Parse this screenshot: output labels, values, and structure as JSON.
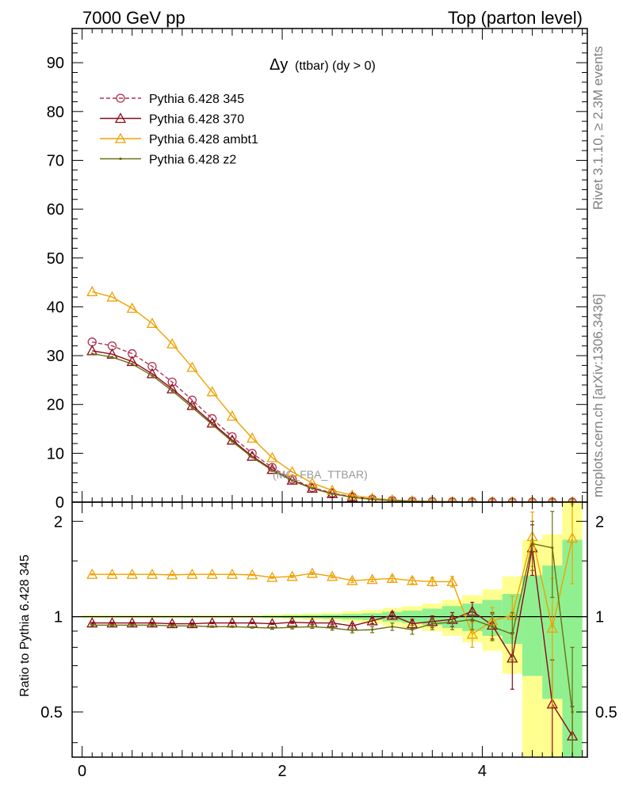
{
  "header": {
    "energy_label": "7000 GeV pp",
    "process_label": "Top (parton level)"
  },
  "side_labels": {
    "rivet": "Rivet 3.1.10, ≥ 2.3M events",
    "mcplots": "mcplots.cern.ch [arXiv:1306.3436]"
  },
  "chart_data": [
    {
      "type": "line",
      "title_main": "Δy",
      "title_sub": "(ttbar) (dy > 0)",
      "watermark": "(MC_FBA_TTBAR)",
      "ylim": [
        0,
        97
      ],
      "xlim": [
        -0.1,
        5.05
      ],
      "yticks": [
        "0",
        "10",
        "20",
        "30",
        "40",
        "50",
        "60",
        "70",
        "80",
        "90"
      ],
      "x": [
        0.1,
        0.3,
        0.5,
        0.7,
        0.9,
        1.1,
        1.3,
        1.5,
        1.7,
        1.9,
        2.1,
        2.3,
        2.5,
        2.7,
        2.9,
        3.1,
        3.3,
        3.5,
        3.7,
        3.9,
        4.1,
        4.3,
        4.5,
        4.7,
        4.9
      ],
      "legend_position": "top-left",
      "series": [
        {
          "name": "Pythia 6.428 345",
          "color": "#b03050",
          "marker": "circle",
          "dashed": true,
          "values": [
            32.8,
            32.0,
            30.4,
            27.8,
            24.6,
            20.9,
            17.1,
            13.4,
            10.0,
            7.1,
            4.7,
            3.0,
            1.85,
            1.1,
            0.6,
            0.35,
            0.2,
            0.12,
            0.07,
            0.04,
            0.03,
            0.02,
            0.01,
            0.01,
            0.01
          ]
        },
        {
          "name": "Pythia 6.428 370",
          "color": "#8b0a1a",
          "marker": "triangle",
          "values": [
            31.0,
            30.3,
            28.8,
            26.3,
            23.2,
            19.8,
            16.2,
            12.7,
            9.4,
            6.7,
            4.5,
            2.85,
            1.75,
            1.0,
            0.58,
            0.34,
            0.19,
            0.11,
            0.07,
            0.04,
            0.03,
            0.02,
            0.01,
            0.01,
            0.01
          ]
        },
        {
          "name": "Pythia 6.428 ambt1",
          "color": "#f0a000",
          "marker": "triangle",
          "values": [
            43.1,
            42.0,
            39.7,
            36.6,
            32.4,
            27.6,
            22.6,
            17.6,
            13.1,
            9.1,
            6.2,
            3.9,
            2.4,
            1.4,
            0.8,
            0.45,
            0.25,
            0.14,
            0.08,
            0.05,
            0.03,
            0.02,
            0.01,
            0.01,
            0.01
          ]
        },
        {
          "name": "Pythia 6.428 z2",
          "color": "#6b7010",
          "marker": "dot",
          "values": [
            30.4,
            29.7,
            28.3,
            25.9,
            22.8,
            19.4,
            15.9,
            12.4,
            9.2,
            6.5,
            4.4,
            2.8,
            1.7,
            1.0,
            0.55,
            0.32,
            0.18,
            0.1,
            0.06,
            0.04,
            0.03,
            0.02,
            0.01,
            0.01,
            0.01
          ]
        }
      ]
    },
    {
      "type": "line",
      "ylabel": "Ratio to Pythia 6.428 345",
      "ylim": [
        0.36,
        2.3
      ],
      "yscale": "log",
      "xlim": [
        -0.1,
        5.05
      ],
      "xticks": [
        "0",
        "2",
        "4"
      ],
      "yticks": [
        "0.5",
        "1",
        "2"
      ],
      "x": [
        0.1,
        0.3,
        0.5,
        0.7,
        0.9,
        1.1,
        1.3,
        1.5,
        1.7,
        1.9,
        2.1,
        2.3,
        2.5,
        2.7,
        2.9,
        3.1,
        3.3,
        3.5,
        3.7,
        3.9,
        4.1,
        4.3,
        4.5,
        4.7,
        4.9
      ],
      "bands": {
        "inner_color": "#90f090",
        "outer_color": "#ffff90",
        "inner": [
          [
            0.995,
            1.005
          ],
          [
            0.995,
            1.005
          ],
          [
            0.995,
            1.005
          ],
          [
            0.995,
            1.005
          ],
          [
            0.995,
            1.005
          ],
          [
            0.995,
            1.005
          ],
          [
            0.995,
            1.005
          ],
          [
            0.995,
            1.005
          ],
          [
            0.995,
            1.005
          ],
          [
            0.993,
            1.007
          ],
          [
            0.99,
            1.01
          ],
          [
            0.988,
            1.012
          ],
          [
            0.985,
            1.015
          ],
          [
            0.98,
            1.02
          ],
          [
            0.975,
            1.025
          ],
          [
            0.965,
            1.035
          ],
          [
            0.955,
            1.045
          ],
          [
            0.94,
            1.06
          ],
          [
            0.92,
            1.08
          ],
          [
            0.9,
            1.1
          ],
          [
            0.87,
            1.13
          ],
          [
            0.82,
            1.18
          ],
          [
            0.65,
            1.35
          ],
          [
            0.55,
            1.45
          ],
          [
            0.35,
            1.75
          ]
        ],
        "outer": [
          [
            0.99,
            1.01
          ],
          [
            0.99,
            1.01
          ],
          [
            0.99,
            1.01
          ],
          [
            0.99,
            1.01
          ],
          [
            0.99,
            1.01
          ],
          [
            0.99,
            1.01
          ],
          [
            0.99,
            1.01
          ],
          [
            0.99,
            1.01
          ],
          [
            0.99,
            1.01
          ],
          [
            0.985,
            1.015
          ],
          [
            0.98,
            1.02
          ],
          [
            0.975,
            1.025
          ],
          [
            0.97,
            1.03
          ],
          [
            0.96,
            1.04
          ],
          [
            0.95,
            1.05
          ],
          [
            0.935,
            1.065
          ],
          [
            0.92,
            1.08
          ],
          [
            0.9,
            1.1
          ],
          [
            0.87,
            1.13
          ],
          [
            0.83,
            1.17
          ],
          [
            0.78,
            1.22
          ],
          [
            0.66,
            1.34
          ],
          [
            0.35,
            1.75
          ],
          [
            0.35,
            1.82
          ],
          [
            0.35,
            2.3
          ]
        ]
      },
      "series": [
        {
          "name": "Pythia 6.428 370",
          "color": "#8b0a1a",
          "marker": "triangle",
          "values": [
            0.955,
            0.955,
            0.955,
            0.955,
            0.95,
            0.95,
            0.955,
            0.955,
            0.955,
            0.95,
            0.96,
            0.955,
            0.955,
            0.935,
            0.97,
            1.01,
            0.95,
            0.965,
            0.98,
            1.04,
            0.94,
            0.74,
            1.65,
            0.53,
            0.42
          ],
          "errors": [
            0.005,
            0.005,
            0.005,
            0.005,
            0.005,
            0.005,
            0.005,
            0.005,
            0.005,
            0.005,
            0.008,
            0.01,
            0.012,
            0.015,
            0.02,
            0.025,
            0.03,
            0.04,
            0.05,
            0.07,
            0.09,
            0.15,
            0.3,
            0.2,
            0.1
          ]
        },
        {
          "name": "Pythia 6.428 ambt1",
          "color": "#f0a000",
          "marker": "triangle",
          "values": [
            1.36,
            1.36,
            1.36,
            1.36,
            1.355,
            1.36,
            1.36,
            1.36,
            1.355,
            1.33,
            1.34,
            1.37,
            1.34,
            1.3,
            1.31,
            1.32,
            1.3,
            1.29,
            1.29,
            0.88,
            0.97,
            1.01,
            1.79,
            0.92,
            1.77
          ],
          "errors": [
            0.005,
            0.005,
            0.005,
            0.005,
            0.005,
            0.005,
            0.005,
            0.005,
            0.005,
            0.008,
            0.01,
            0.012,
            0.014,
            0.018,
            0.02,
            0.025,
            0.03,
            0.04,
            0.05,
            0.08,
            0.1,
            0.15,
            0.35,
            0.4,
            0.5
          ]
        },
        {
          "name": "Pythia 6.428 z2",
          "color": "#6b7010",
          "marker": "dot",
          "values": [
            0.94,
            0.94,
            0.94,
            0.94,
            0.935,
            0.935,
            0.93,
            0.93,
            0.925,
            0.92,
            0.925,
            0.93,
            0.92,
            0.905,
            0.91,
            0.93,
            0.91,
            0.95,
            0.96,
            0.98,
            0.93,
            0.88,
            1.7,
            1.65,
            0.5
          ],
          "errors": [
            0.005,
            0.005,
            0.005,
            0.005,
            0.005,
            0.005,
            0.005,
            0.005,
            0.005,
            0.008,
            0.01,
            0.012,
            0.014,
            0.016,
            0.02,
            0.025,
            0.03,
            0.04,
            0.05,
            0.07,
            0.09,
            0.15,
            0.3,
            0.5,
            0.3
          ]
        }
      ]
    }
  ]
}
